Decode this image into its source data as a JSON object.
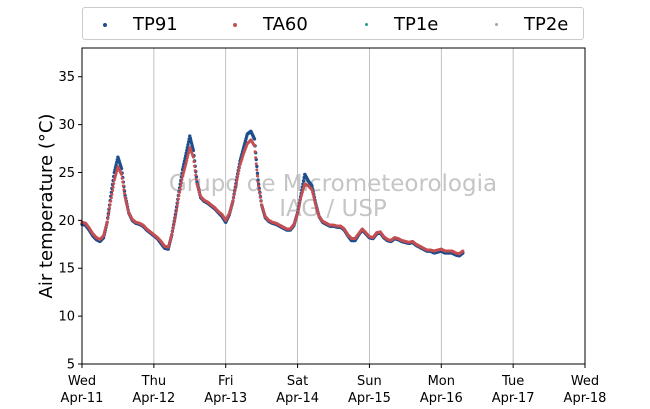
{
  "chart_data": {
    "type": "line",
    "ylabel": "Air temperature (°C)",
    "ylim": [
      5,
      38
    ],
    "yticks": [
      5,
      10,
      15,
      20,
      25,
      30,
      35
    ],
    "xlim": [
      0,
      7
    ],
    "xticks": [
      {
        "day": "Wed",
        "date": "Apr-11",
        "x": 0
      },
      {
        "day": "Thu",
        "date": "Apr-12",
        "x": 1
      },
      {
        "day": "Fri",
        "date": "Apr-13",
        "x": 2
      },
      {
        "day": "Sat",
        "date": "Apr-14",
        "x": 3
      },
      {
        "day": "Sun",
        "date": "Apr-15",
        "x": 4
      },
      {
        "day": "Mon",
        "date": "Apr-16",
        "x": 5
      },
      {
        "day": "Tue",
        "date": "Apr-17",
        "x": 6
      },
      {
        "day": "Wed",
        "date": "Apr-18",
        "x": 7
      }
    ],
    "grid": "vertical",
    "legend_position": "top",
    "watermark": [
      "Grupo de Micrometeorologia",
      "IAG / USP"
    ],
    "series": [
      {
        "name": "TP91",
        "color": "#1f4e8c",
        "style": "dots",
        "x": [
          0,
          0.05,
          0.1,
          0.15,
          0.2,
          0.25,
          0.3,
          0.35,
          0.4,
          0.45,
          0.5,
          0.55,
          0.6,
          0.65,
          0.7,
          0.75,
          0.8,
          0.85,
          0.9,
          0.95,
          1.0,
          1.05,
          1.1,
          1.15,
          1.2,
          1.25,
          1.3,
          1.35,
          1.4,
          1.45,
          1.5,
          1.55,
          1.6,
          1.65,
          1.7,
          1.75,
          1.8,
          1.85,
          1.9,
          1.95,
          2.0,
          2.05,
          2.1,
          2.15,
          2.2,
          2.25,
          2.3,
          2.35,
          2.4,
          2.45,
          2.5,
          2.55,
          2.6,
          2.65,
          2.7,
          2.75,
          2.8,
          2.85,
          2.9,
          2.95,
          3.0,
          3.05,
          3.1,
          3.15,
          3.2,
          3.25,
          3.3,
          3.35,
          3.4,
          3.45,
          3.5,
          3.55,
          3.6,
          3.65,
          3.7,
          3.75,
          3.8,
          3.85,
          3.9,
          3.95,
          4.0,
          4.05,
          4.1,
          4.15,
          4.2,
          4.25,
          4.3,
          4.35,
          4.4,
          4.45,
          4.5,
          4.55,
          4.6,
          4.65,
          4.7,
          4.75,
          4.8,
          4.85,
          4.9,
          4.95,
          5.0,
          5.05,
          5.1,
          5.15,
          5.2,
          5.25,
          5.3
        ],
        "y": [
          19.6,
          19.5,
          19.0,
          18.4,
          18.0,
          17.8,
          18.2,
          19.8,
          22.5,
          25.0,
          26.6,
          25.4,
          22.6,
          20.8,
          20.0,
          19.7,
          19.6,
          19.4,
          19.0,
          18.7,
          18.4,
          18.1,
          17.6,
          17.1,
          17.0,
          18.5,
          20.6,
          23.0,
          25.3,
          27.0,
          28.8,
          27.3,
          24.0,
          22.4,
          22.0,
          21.8,
          21.5,
          21.2,
          20.8,
          20.4,
          19.8,
          20.6,
          22.0,
          24.2,
          26.2,
          27.6,
          29.0,
          29.3,
          28.5,
          24.2,
          21.6,
          20.3,
          19.9,
          19.7,
          19.6,
          19.4,
          19.2,
          19.0,
          19.0,
          19.5,
          20.8,
          22.8,
          24.8,
          24.1,
          23.6,
          21.8,
          20.4,
          19.8,
          19.6,
          19.4,
          19.4,
          19.3,
          19.3,
          19.0,
          18.4,
          17.9,
          17.9,
          18.5,
          19.0,
          18.6,
          18.2,
          18.1,
          18.6,
          18.7,
          18.2,
          17.9,
          17.8,
          18.1,
          18.0,
          17.8,
          17.7,
          17.6,
          17.7,
          17.4,
          17.2,
          17.0,
          16.8,
          16.8,
          16.6,
          16.7,
          16.8,
          16.6,
          16.6,
          16.6,
          16.4,
          16.3,
          16.6
        ]
      },
      {
        "name": "TA60",
        "color": "#c44e52",
        "style": "dots",
        "x": [
          0,
          0.05,
          0.1,
          0.15,
          0.2,
          0.25,
          0.3,
          0.35,
          0.4,
          0.45,
          0.5,
          0.55,
          0.6,
          0.65,
          0.7,
          0.75,
          0.8,
          0.85,
          0.9,
          0.95,
          1.0,
          1.05,
          1.1,
          1.15,
          1.2,
          1.25,
          1.3,
          1.35,
          1.4,
          1.45,
          1.5,
          1.55,
          1.6,
          1.65,
          1.7,
          1.75,
          1.8,
          1.85,
          1.9,
          1.95,
          2.0,
          2.05,
          2.1,
          2.15,
          2.2,
          2.25,
          2.3,
          2.35,
          2.4,
          2.45,
          2.5,
          2.55,
          2.6,
          2.65,
          2.7,
          2.75,
          2.8,
          2.85,
          2.9,
          2.95,
          3.0,
          3.05,
          3.1,
          3.15,
          3.2,
          3.25,
          3.3,
          3.35,
          3.4,
          3.45,
          3.5,
          3.55,
          3.6,
          3.65,
          3.7,
          3.75,
          3.8,
          3.85,
          3.9,
          3.95,
          4.0,
          4.05,
          4.1,
          4.15,
          4.2,
          4.25,
          4.3,
          4.35,
          4.4,
          4.45,
          4.5,
          4.55,
          4.6,
          4.65,
          4.7,
          4.75,
          4.8,
          4.85,
          4.9,
          4.95,
          5.0,
          5.05,
          5.1,
          5.15,
          5.2,
          5.25,
          5.3
        ],
        "y": [
          19.8,
          19.7,
          19.2,
          18.6,
          18.2,
          18.0,
          18.4,
          19.8,
          22.0,
          24.2,
          25.6,
          24.8,
          22.4,
          20.8,
          20.1,
          19.8,
          19.7,
          19.5,
          19.1,
          18.8,
          18.5,
          18.2,
          17.8,
          17.3,
          17.2,
          18.5,
          20.4,
          22.6,
          24.6,
          26.0,
          27.6,
          26.6,
          23.8,
          22.5,
          22.1,
          21.9,
          21.6,
          21.3,
          20.9,
          20.6,
          20.0,
          20.7,
          22.0,
          24.0,
          25.8,
          27.0,
          28.0,
          28.4,
          27.8,
          24.0,
          21.6,
          20.4,
          20.0,
          19.8,
          19.7,
          19.5,
          19.3,
          19.1,
          19.1,
          19.6,
          20.7,
          22.5,
          23.8,
          23.6,
          23.2,
          21.7,
          20.4,
          19.9,
          19.7,
          19.5,
          19.5,
          19.4,
          19.4,
          19.1,
          18.5,
          18.1,
          18.1,
          18.6,
          19.1,
          18.7,
          18.3,
          18.2,
          18.7,
          18.8,
          18.3,
          18.0,
          17.9,
          18.2,
          18.1,
          17.9,
          17.8,
          17.7,
          17.8,
          17.5,
          17.3,
          17.1,
          16.9,
          16.9,
          16.8,
          16.9,
          17.0,
          16.8,
          16.8,
          16.8,
          16.6,
          16.5,
          16.8
        ]
      },
      {
        "name": "TP1e",
        "color": "#2a9d8f",
        "style": "dots",
        "x": [],
        "y": []
      },
      {
        "name": "TP2e",
        "color": "#9aa5b1",
        "style": "dots",
        "x": [],
        "y": []
      }
    ]
  }
}
